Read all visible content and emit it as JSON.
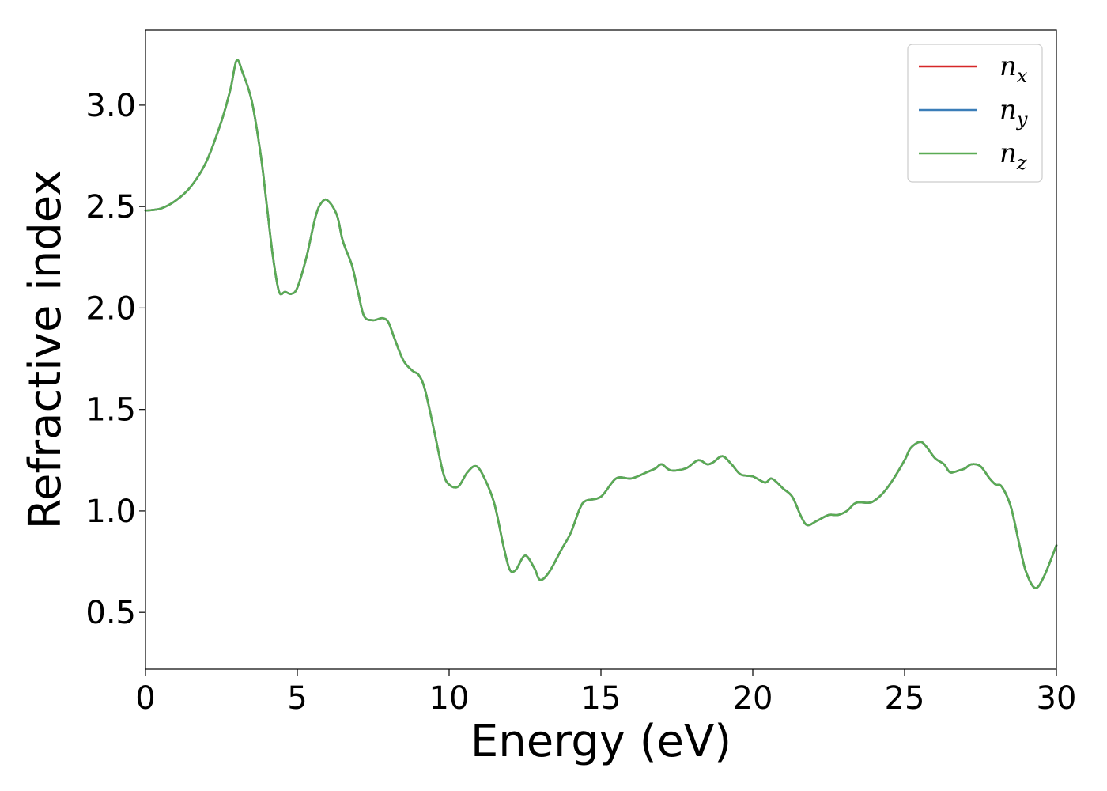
{
  "chart_data": {
    "type": "line",
    "title": "",
    "xlabel": "Energy (eV)",
    "ylabel": "Refractive index",
    "xlim": [
      0,
      30
    ],
    "ylim": [
      0.22,
      3.37
    ],
    "xticks": [
      0,
      5,
      10,
      15,
      20,
      25,
      30
    ],
    "xtick_labels": [
      "0",
      "5",
      "10",
      "15",
      "20",
      "25",
      "30"
    ],
    "yticks": [
      0.5,
      1.0,
      1.5,
      2.0,
      2.5,
      3.0
    ],
    "ytick_labels": [
      "0.5",
      "1.0",
      "1.5",
      "2.0",
      "2.5",
      "3.0"
    ],
    "grid": false,
    "legend_position": "top-right",
    "x": [
      0,
      0.5,
      1,
      1.5,
      2,
      2.5,
      2.8,
      3.0,
      3.2,
      3.5,
      3.8,
      4.0,
      4.2,
      4.4,
      4.6,
      4.8,
      5.0,
      5.3,
      5.6,
      5.8,
      6.0,
      6.3,
      6.5,
      6.8,
      7.0,
      7.2,
      7.5,
      7.8,
      8.0,
      8.2,
      8.5,
      8.8,
      9.0,
      9.2,
      9.5,
      9.8,
      10.0,
      10.3,
      10.6,
      10.9,
      11.2,
      11.5,
      11.8,
      12.0,
      12.2,
      12.5,
      12.8,
      13.0,
      13.3,
      13.7,
      14.0,
      14.3,
      14.5,
      15.0,
      15.5,
      16.0,
      16.5,
      16.8,
      17.0,
      17.3,
      17.8,
      18.2,
      18.5,
      18.7,
      19.0,
      19.3,
      19.6,
      20.0,
      20.4,
      20.6,
      20.8,
      21.0,
      21.3,
      21.6,
      21.8,
      22.1,
      22.5,
      22.8,
      23.1,
      23.4,
      23.8,
      24.0,
      24.3,
      24.6,
      25.0,
      25.2,
      25.5,
      25.7,
      26.0,
      26.3,
      26.5,
      26.8,
      27.0,
      27.2,
      27.5,
      27.8,
      28.0,
      28.2,
      28.5,
      28.8,
      29.0,
      29.3,
      29.6,
      30.0
    ],
    "series": [
      {
        "name": "x",
        "color": "#d62728",
        "values": [
          2.48,
          2.49,
          2.53,
          2.6,
          2.72,
          2.92,
          3.08,
          3.22,
          3.16,
          3.02,
          2.75,
          2.5,
          2.25,
          2.08,
          2.08,
          2.07,
          2.1,
          2.25,
          2.45,
          2.52,
          2.53,
          2.46,
          2.33,
          2.21,
          2.08,
          1.96,
          1.94,
          1.95,
          1.93,
          1.85,
          1.74,
          1.69,
          1.67,
          1.6,
          1.4,
          1.19,
          1.13,
          1.12,
          1.19,
          1.22,
          1.15,
          1.03,
          0.82,
          0.71,
          0.71,
          0.78,
          0.72,
          0.66,
          0.7,
          0.81,
          0.89,
          1.01,
          1.05,
          1.07,
          1.16,
          1.16,
          1.19,
          1.21,
          1.23,
          1.2,
          1.21,
          1.25,
          1.23,
          1.24,
          1.27,
          1.23,
          1.18,
          1.17,
          1.14,
          1.16,
          1.14,
          1.11,
          1.07,
          0.97,
          0.93,
          0.95,
          0.98,
          0.98,
          1.0,
          1.04,
          1.04,
          1.05,
          1.09,
          1.15,
          1.25,
          1.31,
          1.34,
          1.32,
          1.26,
          1.23,
          1.19,
          1.2,
          1.21,
          1.23,
          1.22,
          1.16,
          1.13,
          1.12,
          1.02,
          0.82,
          0.7,
          0.62,
          0.68,
          0.83
        ]
      },
      {
        "name": "y",
        "color": "#3a7db8",
        "values": [
          2.48,
          2.49,
          2.53,
          2.6,
          2.72,
          2.92,
          3.08,
          3.22,
          3.16,
          3.02,
          2.75,
          2.5,
          2.25,
          2.08,
          2.08,
          2.07,
          2.1,
          2.25,
          2.45,
          2.52,
          2.53,
          2.46,
          2.33,
          2.21,
          2.08,
          1.96,
          1.94,
          1.95,
          1.93,
          1.85,
          1.74,
          1.69,
          1.67,
          1.6,
          1.4,
          1.19,
          1.13,
          1.12,
          1.19,
          1.22,
          1.15,
          1.03,
          0.82,
          0.71,
          0.71,
          0.78,
          0.72,
          0.66,
          0.7,
          0.81,
          0.89,
          1.01,
          1.05,
          1.07,
          1.16,
          1.16,
          1.19,
          1.21,
          1.23,
          1.2,
          1.21,
          1.25,
          1.23,
          1.24,
          1.27,
          1.23,
          1.18,
          1.17,
          1.14,
          1.16,
          1.14,
          1.11,
          1.07,
          0.97,
          0.93,
          0.95,
          0.98,
          0.98,
          1.0,
          1.04,
          1.04,
          1.05,
          1.09,
          1.15,
          1.25,
          1.31,
          1.34,
          1.32,
          1.26,
          1.23,
          1.19,
          1.2,
          1.21,
          1.23,
          1.22,
          1.16,
          1.13,
          1.12,
          1.02,
          0.82,
          0.7,
          0.62,
          0.68,
          0.83
        ]
      },
      {
        "name": "z",
        "color": "#5aab54",
        "values": [
          2.48,
          2.49,
          2.53,
          2.6,
          2.72,
          2.92,
          3.08,
          3.22,
          3.16,
          3.02,
          2.75,
          2.5,
          2.25,
          2.08,
          2.08,
          2.07,
          2.1,
          2.25,
          2.45,
          2.52,
          2.53,
          2.46,
          2.33,
          2.21,
          2.08,
          1.96,
          1.94,
          1.95,
          1.93,
          1.85,
          1.74,
          1.69,
          1.67,
          1.6,
          1.4,
          1.19,
          1.13,
          1.12,
          1.19,
          1.22,
          1.15,
          1.03,
          0.82,
          0.71,
          0.71,
          0.78,
          0.72,
          0.66,
          0.7,
          0.81,
          0.89,
          1.01,
          1.05,
          1.07,
          1.16,
          1.16,
          1.19,
          1.21,
          1.23,
          1.2,
          1.21,
          1.25,
          1.23,
          1.24,
          1.27,
          1.23,
          1.18,
          1.17,
          1.14,
          1.16,
          1.14,
          1.11,
          1.07,
          0.97,
          0.93,
          0.95,
          0.98,
          0.98,
          1.0,
          1.04,
          1.04,
          1.05,
          1.09,
          1.15,
          1.25,
          1.31,
          1.34,
          1.32,
          1.26,
          1.23,
          1.19,
          1.2,
          1.21,
          1.23,
          1.22,
          1.16,
          1.13,
          1.12,
          1.02,
          0.82,
          0.7,
          0.62,
          0.68,
          0.83
        ]
      }
    ],
    "legend": [
      {
        "symbol": "n",
        "subscript": "x"
      },
      {
        "symbol": "n",
        "subscript": "y"
      },
      {
        "symbol": "n",
        "subscript": "z"
      }
    ]
  }
}
